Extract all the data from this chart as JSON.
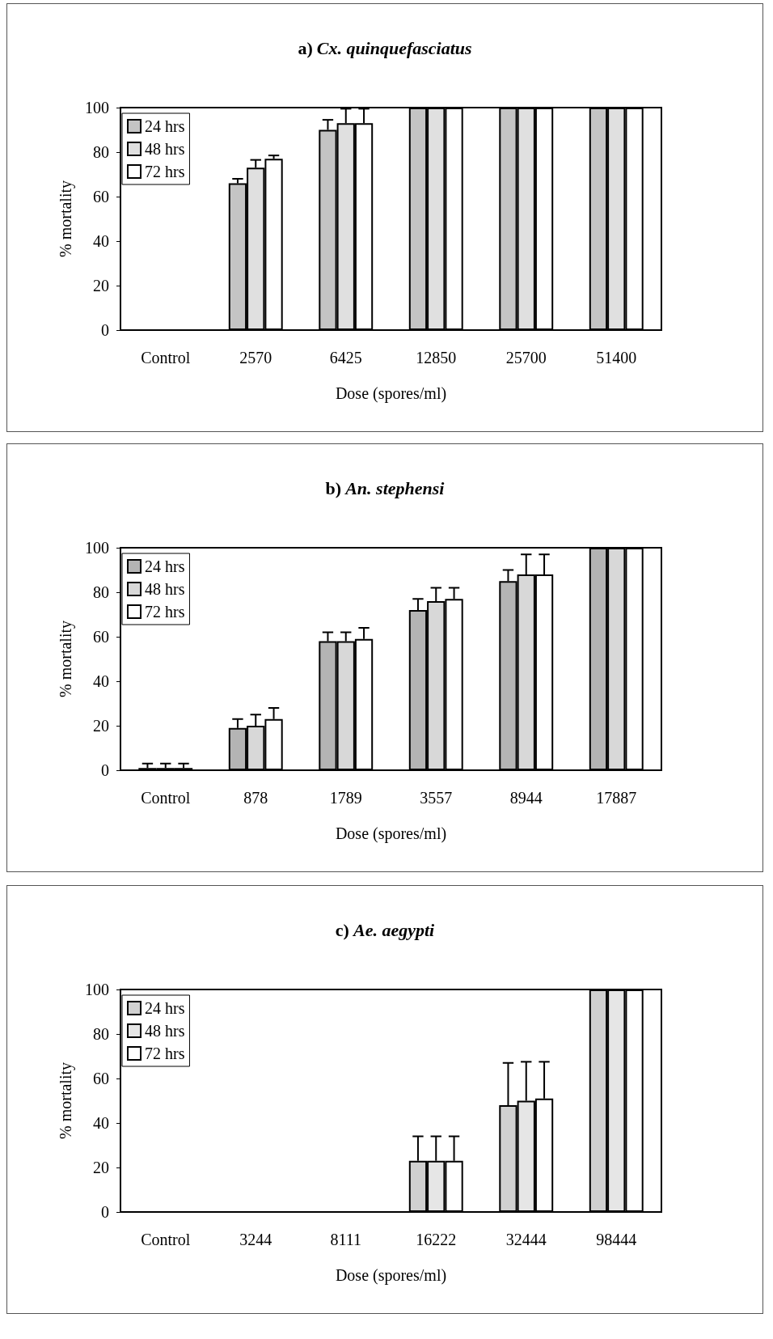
{
  "chart_data": [
    {
      "type": "bar",
      "title": "a) Cx. quinquefasciatus",
      "xlabel": "Dose (spores/ml)",
      "ylabel": "% mortality",
      "categories": [
        "Control",
        "2570",
        "6425",
        "12850",
        "25700",
        "51400"
      ],
      "series": [
        {
          "name": "24 hrs",
          "color": "#c4c4c4",
          "values": [
            0,
            66,
            90,
            100,
            100,
            100
          ],
          "errors": [
            null,
            2,
            4.5,
            null,
            null,
            null
          ]
        },
        {
          "name": "48 hrs",
          "color": "#e0e0e0",
          "values": [
            0,
            73,
            93,
            100,
            100,
            100
          ],
          "errors": [
            null,
            3.5,
            6.5,
            null,
            null,
            null
          ]
        },
        {
          "name": "72 hrs",
          "color": "#ffffff",
          "values": [
            0,
            77,
            93,
            100,
            100,
            100
          ],
          "errors": [
            null,
            1.5,
            6.5,
            null,
            null,
            null
          ]
        }
      ],
      "ylim": [
        0,
        100
      ],
      "yticks": [
        0,
        20,
        40,
        60,
        80,
        100
      ],
      "grid": false,
      "legend": "top left"
    },
    {
      "type": "bar",
      "title": "b) An. stephensi",
      "xlabel": "Dose (spores/ml)",
      "ylabel": "% mortality",
      "categories": [
        "Control",
        "878",
        "1789",
        "3557",
        "8944",
        "17887"
      ],
      "series": [
        {
          "name": "24 hrs",
          "color": "#b4b4b4",
          "values": [
            1,
            19,
            58,
            72,
            85,
            100
          ],
          "errors": [
            2,
            4,
            4,
            5,
            5,
            null
          ]
        },
        {
          "name": "48 hrs",
          "color": "#d8d8d8",
          "values": [
            1,
            20,
            58,
            76,
            88,
            100
          ],
          "errors": [
            2,
            5,
            4,
            6,
            9,
            null
          ]
        },
        {
          "name": "72 hrs",
          "color": "#ffffff",
          "values": [
            1,
            23,
            59,
            77,
            88,
            100
          ],
          "errors": [
            2,
            5,
            5,
            5,
            9,
            null
          ]
        }
      ],
      "ylim": [
        0,
        100
      ],
      "yticks": [
        0,
        20,
        40,
        60,
        80,
        100
      ],
      "grid": false,
      "legend": "top left"
    },
    {
      "type": "bar",
      "title": "c) Ae. aegypti",
      "xlabel": "Dose (spores/ml)",
      "ylabel": "% mortality",
      "categories": [
        "Control",
        "3244",
        "8111",
        "16222",
        "32444",
        "98444"
      ],
      "series": [
        {
          "name": "24 hrs",
          "color": "#d0d0d0",
          "values": [
            0,
            0,
            0,
            23,
            48,
            100
          ],
          "errors": [
            null,
            null,
            null,
            11,
            19,
            null
          ]
        },
        {
          "name": "48 hrs",
          "color": "#e6e6e6",
          "values": [
            0,
            0,
            0,
            23,
            50,
            100
          ],
          "errors": [
            null,
            null,
            null,
            11,
            17.5,
            null
          ]
        },
        {
          "name": "72 hrs",
          "color": "#ffffff",
          "values": [
            0,
            0,
            0,
            23,
            51,
            100
          ],
          "errors": [
            null,
            null,
            null,
            11,
            16.5,
            null
          ]
        }
      ],
      "ylim": [
        0,
        100
      ],
      "yticks": [
        0,
        20,
        40,
        60,
        80,
        100
      ],
      "grid": false,
      "legend": "top left"
    }
  ]
}
